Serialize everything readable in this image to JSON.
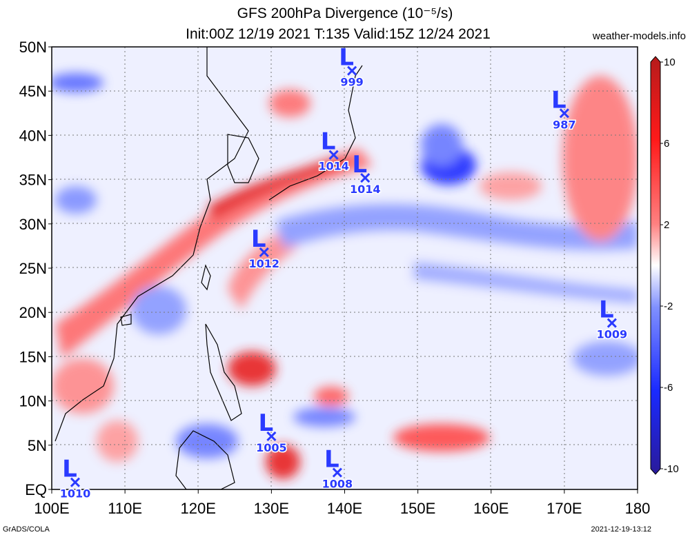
{
  "title": {
    "line1": "GFS 200hPa Divergence (10⁻⁵/s)",
    "line2": "Init:00Z 12/19 2021 T:135 Valid:15Z 12/24 2021"
  },
  "source": "weather-models.info",
  "footer": {
    "left": "GrADS/COLA",
    "right": "2021-12-19-13:12"
  },
  "axes": {
    "lat_labels": [
      "50N",
      "45N",
      "40N",
      "35N",
      "30N",
      "25N",
      "20N",
      "15N",
      "10N",
      "5N",
      "EQ"
    ],
    "lon_labels": [
      "100E",
      "110E",
      "120E",
      "130E",
      "140E",
      "150E",
      "160E",
      "170E",
      "180"
    ]
  },
  "colorbar": {
    "labels": [
      "10",
      "6",
      "2",
      "-2",
      "-6",
      "-10"
    ],
    "colors": [
      "#b61b1b",
      "#ff1a1a",
      "#ff8080",
      "#ffd7d7",
      "#ffffff",
      "#d7dcff",
      "#8090ff",
      "#1a2aff",
      "#2a1a9a"
    ]
  },
  "pressure_lows": [
    {
      "pressure": "999",
      "lon": 141.0,
      "lat": 47.3
    },
    {
      "pressure": "987",
      "lon": 170.0,
      "lat": 42.5
    },
    {
      "pressure": "1014",
      "lon": 138.5,
      "lat": 37.8
    },
    {
      "pressure": "1014",
      "lon": 142.8,
      "lat": 35.2
    },
    {
      "pressure": "1012",
      "lon": 129.0,
      "lat": 26.8
    },
    {
      "pressure": "1009",
      "lon": 176.5,
      "lat": 18.8
    },
    {
      "pressure": "1005",
      "lon": 130.0,
      "lat": 6.0
    },
    {
      "pressure": "1008",
      "lon": 139.0,
      "lat": 1.9
    },
    {
      "pressure": "1010",
      "lon": 103.2,
      "lat": 0.8
    }
  ]
}
